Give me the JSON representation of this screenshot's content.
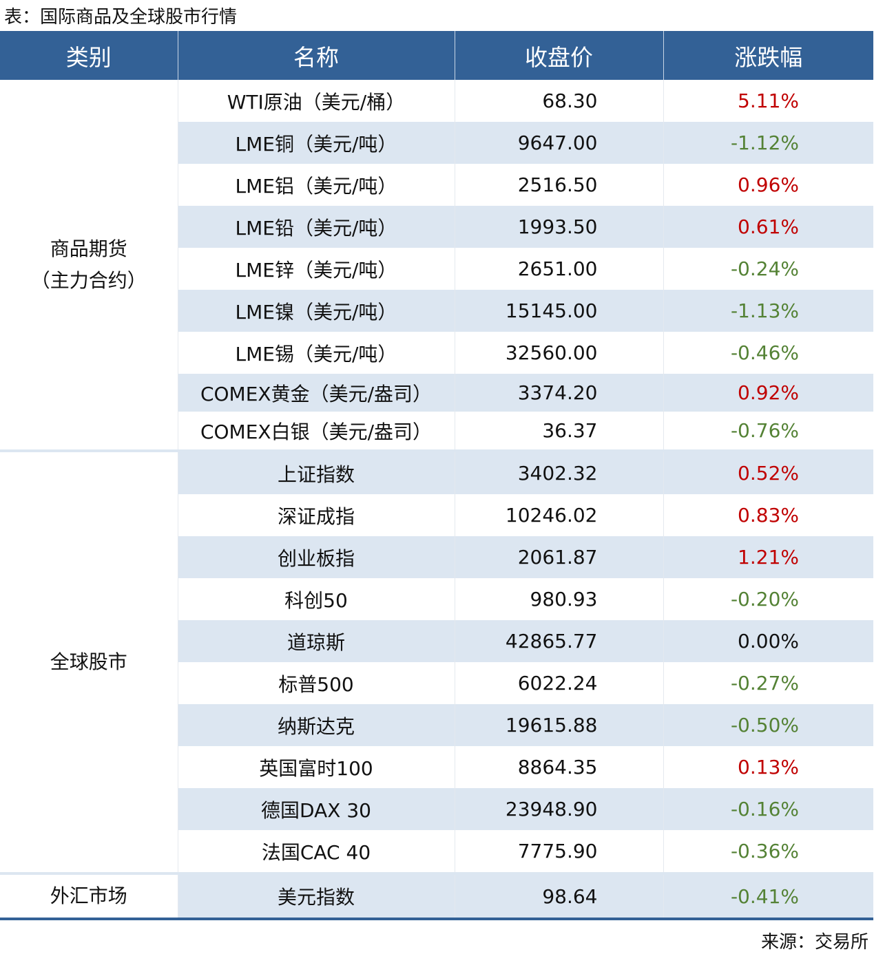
{
  "title": "表：国际商品及全球股市行情",
  "headers": [
    "类别",
    "名称",
    "收盘价",
    "涨跌幅"
  ],
  "groups": [
    {
      "category": "商品期货\n（主力合约）",
      "rows": [
        {
          "name": "WTI原油（美元/桶）",
          "price": "68.30",
          "change": "5.11%",
          "dir": "up"
        },
        {
          "name": "LME铜（美元/吨）",
          "price": "9647.00",
          "change": "-1.12%",
          "dir": "down"
        },
        {
          "name": "LME铝（美元/吨）",
          "price": "2516.50",
          "change": "0.96%",
          "dir": "up"
        },
        {
          "name": "LME铅（美元/吨）",
          "price": "1993.50",
          "change": "0.61%",
          "dir": "up"
        },
        {
          "name": "LME锌（美元/吨）",
          "price": "2651.00",
          "change": "-0.24%",
          "dir": "down"
        },
        {
          "name": "LME镍（美元/吨）",
          "price": "15145.00",
          "change": "-1.13%",
          "dir": "down"
        },
        {
          "name": "LME锡（美元/吨）",
          "price": "32560.00",
          "change": "-0.46%",
          "dir": "down"
        },
        {
          "name": "COMEX黄金（美元/盎司）",
          "price": "3374.20",
          "change": "0.92%",
          "dir": "up"
        },
        {
          "name": "COMEX白银（美元/盎司）",
          "price": "36.37",
          "change": "-0.76%",
          "dir": "down"
        }
      ]
    },
    {
      "category": "全球股市",
      "rows": [
        {
          "name": "上证指数",
          "price": "3402.32",
          "change": "0.52%",
          "dir": "up"
        },
        {
          "name": "深证成指",
          "price": "10246.02",
          "change": "0.83%",
          "dir": "up"
        },
        {
          "name": "创业板指",
          "price": "2061.87",
          "change": "1.21%",
          "dir": "up"
        },
        {
          "name": "科创50",
          "price": "980.93",
          "change": "-0.20%",
          "dir": "down"
        },
        {
          "name": "道琼斯",
          "price": "42865.77",
          "change": "0.00%",
          "dir": "flat"
        },
        {
          "name": "标普500",
          "price": "6022.24",
          "change": "-0.27%",
          "dir": "down"
        },
        {
          "name": "纳斯达克",
          "price": "19615.88",
          "change": "-0.50%",
          "dir": "down"
        },
        {
          "name": "英国富时100",
          "price": "8864.35",
          "change": "0.13%",
          "dir": "up"
        },
        {
          "name": "德国DAX 30",
          "price": "23948.90",
          "change": "-0.16%",
          "dir": "down"
        },
        {
          "name": "法国CAC 40",
          "price": "7775.90",
          "change": "-0.36%",
          "dir": "down"
        }
      ]
    },
    {
      "category": "外汇市场",
      "rows": [
        {
          "name": "美元指数",
          "price": "98.64",
          "change": "-0.41%",
          "dir": "down"
        }
      ]
    }
  ],
  "source": "来源：交易所",
  "colors": {
    "header": "#336196",
    "stripe": "#dce6f1",
    "up": "#c00000",
    "down": "#548235"
  }
}
